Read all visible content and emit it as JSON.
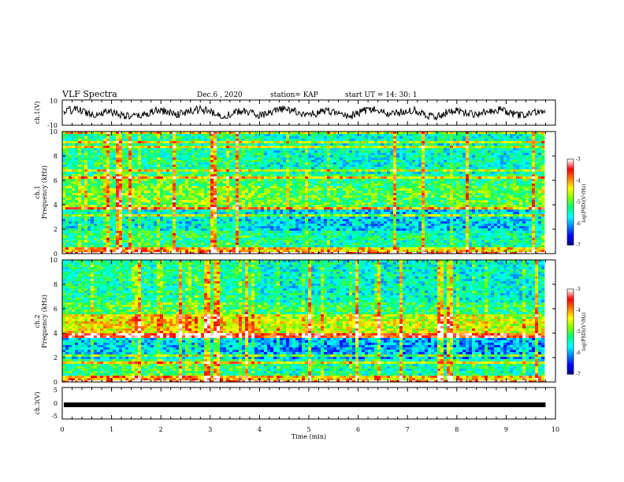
{
  "header": {
    "title": "VLF Spectra",
    "date": "Dec.6  , 2020",
    "station": "station= KAP",
    "start": "start  UT  =   14: 30: 1"
  },
  "chart_data": [
    {
      "type": "line",
      "panel": "ch1-waveform",
      "ylabel": "ch.1(V)",
      "ylim": [
        -10,
        10
      ],
      "yticks": [
        "10",
        "-10"
      ],
      "xlim": [
        0,
        10
      ],
      "description_level": "signal mostly between -6 and 6 V, ending near 9.8 min"
    },
    {
      "type": "heatmap",
      "panel": "ch1-spectrogram",
      "ylabel": "ch.1\nFrequency (kHz)",
      "ylabel_line1": "ch.1",
      "ylabel_line2": "Frequency (kHz)",
      "ylim": [
        0,
        10
      ],
      "yticks": [
        "0",
        "2",
        "4",
        "6",
        "8",
        "10"
      ],
      "xlim": [
        0,
        10
      ],
      "colorbar": {
        "label": "log(PSD)(V²/Hz)",
        "range": [
          -7,
          -3
        ],
        "ticks": [
          "-3",
          "-4",
          "-5",
          "-6",
          "-7"
        ]
      }
    },
    {
      "type": "heatmap",
      "panel": "ch2-spectrogram",
      "ylabel_line1": "ch.2",
      "ylabel_line2": "Frequency (kHz)",
      "ylim": [
        0,
        10
      ],
      "yticks": [
        "0",
        "2",
        "4",
        "6",
        "8",
        "10"
      ],
      "xlim": [
        0,
        10
      ],
      "colorbar": {
        "label": "log(PSD)(V²/Hz)",
        "range": [
          -7,
          -3
        ],
        "ticks": [
          "-3",
          "-4",
          "-5",
          "-6",
          "-7"
        ]
      }
    },
    {
      "type": "line",
      "panel": "ch3-waveform",
      "ylabel": "ch.3(V)",
      "ylim": [
        -5,
        5
      ],
      "yticks": [
        "5",
        "0",
        "-5"
      ],
      "xlim": [
        0,
        10
      ],
      "level": -0.5
    }
  ],
  "xaxis": {
    "label": "Time (min)",
    "ticks": [
      "0",
      "1",
      "2",
      "3",
      "4",
      "5",
      "6",
      "7",
      "8",
      "9",
      "10"
    ],
    "data_end": 9.8
  },
  "colors": {
    "background": "#ffffff",
    "axis": "#000000",
    "colormap": [
      "#00007f",
      "#0000ff",
      "#0080ff",
      "#00ffff",
      "#00ff80",
      "#80ff00",
      "#ffff00",
      "#ff8000",
      "#ff0000",
      "#ffffff"
    ]
  }
}
